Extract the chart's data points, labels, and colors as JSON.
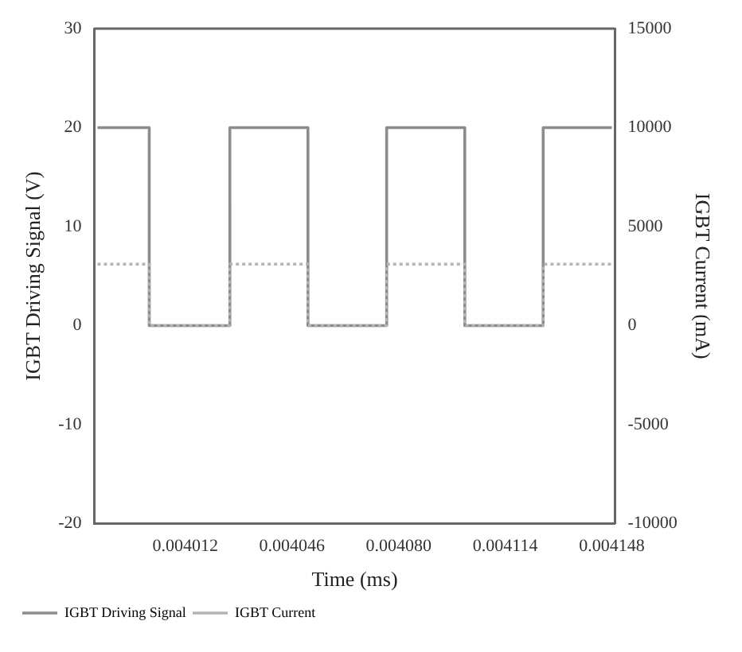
{
  "chart_data": {
    "type": "line",
    "xlabel": "Time (ms)",
    "ylabel": "IGBT Driving Signal (V)",
    "y2label": "IGBT Current (mA)",
    "xlim": [
      0.003983,
      0.004149
    ],
    "xticks": [
      0.004012,
      0.004046,
      {
        "value": 0.00408,
        "label": "0.004080"
      },
      0.004114,
      0.004148
    ],
    "ylim": [
      -20,
      30
    ],
    "yticks": [
      -20,
      -10,
      0,
      10,
      20,
      30
    ],
    "y2lim": [
      -10000,
      15000
    ],
    "y2ticks": [
      -10000,
      -5000,
      0,
      5000,
      10000,
      15000
    ],
    "grid": false,
    "legend": "bottom left",
    "marker": "none",
    "series": [
      {
        "name": "IGBT Driving Signal",
        "color": "#8c8c8c",
        "line_style": "solid",
        "x": [
          0.003984,
          0.0040005,
          0.0040005,
          0.0040262,
          0.0040262,
          0.0040511,
          0.0040511,
          0.0040762,
          0.0040762,
          0.0041011,
          0.0041011,
          0.0041261,
          0.0041261,
          0.004148
        ],
        "values": [
          20,
          20,
          0,
          0,
          20,
          20,
          0,
          0,
          20,
          20,
          0,
          0,
          20,
          20
        ]
      },
      {
        "name": "IGBT Current",
        "color": "#b4b4b4",
        "line_style": "dotted",
        "axis": "y2",
        "x": [
          0.003984,
          0.0040005,
          0.0040005,
          0.0040262,
          0.0040262,
          0.0040511,
          0.0040511,
          0.0040762,
          0.0040762,
          0.0041011,
          0.0041011,
          0.0041261,
          0.0041261,
          0.004148
        ],
        "values": [
          3100,
          3100,
          0,
          0,
          3100,
          3100,
          0,
          0,
          3100,
          3100,
          0,
          0,
          3100,
          3100
        ]
      }
    ]
  }
}
